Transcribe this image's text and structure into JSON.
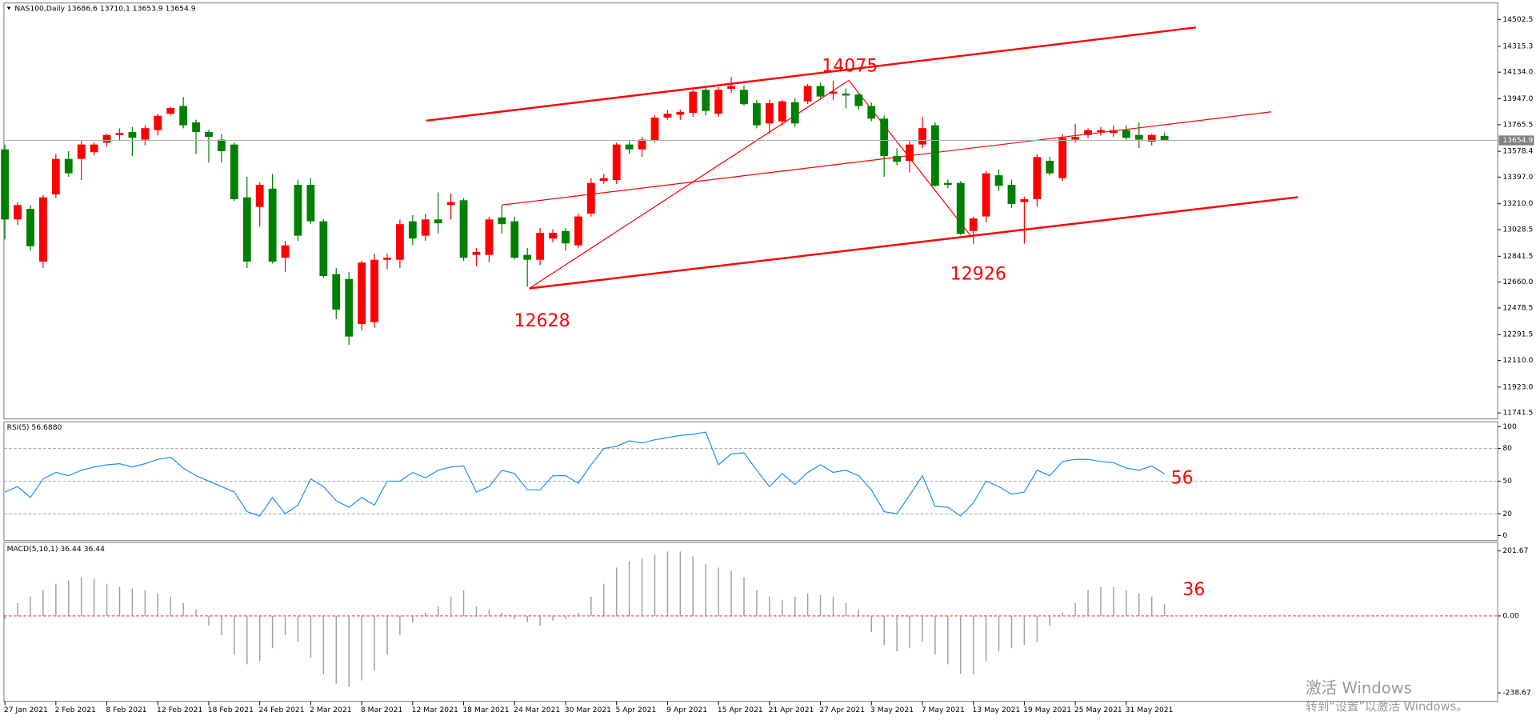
{
  "chart_data": [
    {
      "type": "candlestick",
      "title": "NAS100,Daily  13686.6 13710.1 13653.9 13654.9",
      "up_color": "#ff0000",
      "down_color": "#008000",
      "channel_color": "#ff0000",
      "annotations": [
        "14075",
        "12628",
        "12926"
      ],
      "categories": [
        "27 Jan 2021",
        null,
        null,
        null,
        "2 Feb 2021",
        null,
        null,
        null,
        "8 Feb 2021",
        null,
        null,
        null,
        "12 Feb 2021",
        null,
        null,
        null,
        "18 Feb 2021",
        null,
        null,
        null,
        "24 Feb 2021",
        null,
        null,
        null,
        "2 Mar 2021",
        null,
        null,
        null,
        "8 Mar 2021",
        null,
        null,
        null,
        "12 Mar 2021",
        null,
        null,
        null,
        "18 Mar 2021",
        null,
        null,
        null,
        "24 Mar 2021",
        null,
        null,
        null,
        "30 Mar 2021",
        null,
        null,
        null,
        "5 Apr 2021",
        null,
        null,
        null,
        "9 Apr 2021",
        null,
        null,
        null,
        "15 Apr 2021",
        null,
        null,
        null,
        "21 Apr 2021",
        null,
        null,
        null,
        "27 Apr 2021",
        null,
        null,
        null,
        "3 May 2021",
        null,
        null,
        null,
        "7 May 2021",
        null,
        null,
        null,
        "13 May 2021",
        null,
        null,
        null,
        "19 May 2021",
        null,
        null,
        null,
        "25 May 2021",
        null,
        null,
        null,
        "31 May 2021",
        null,
        null,
        null
      ],
      "open": [
        13592,
        13100,
        13174,
        12804,
        13276,
        13525,
        13525,
        13572,
        13639,
        13693,
        13714,
        13660,
        13727,
        13842,
        13896,
        13781,
        13714,
        13660,
        13626,
        13255,
        13188,
        13316,
        12831,
        13343,
        13343,
        13087,
        12716,
        12682,
        12366,
        12379,
        12817,
        12817,
        13087,
        12986,
        13100,
        13201,
        13235,
        12851,
        12851,
        13114,
        13087,
        12851,
        12817,
        12966,
        13019,
        12918,
        13141,
        13370,
        13377,
        13626,
        13592,
        13653,
        13815,
        13835,
        13848,
        14010,
        13842,
        14017,
        14010,
        13916,
        13774,
        13788,
        13923,
        13929,
        14037,
        13983,
        13983,
        13977,
        13896,
        13808,
        13545,
        13511,
        13626,
        13761,
        13356,
        13356,
        13019,
        13121,
        13410,
        13343,
        13222,
        13242,
        13511,
        13390,
        13660,
        13693,
        13714,
        13707,
        13727,
        13693,
        13646,
        13686.6
      ],
      "high": [
        13626,
        13220,
        13200,
        13270,
        13560,
        13580,
        13650,
        13640,
        13700,
        13740,
        13750,
        13760,
        13840,
        13890,
        13960,
        13800,
        13730,
        13700,
        13640,
        13400,
        13360,
        13420,
        12950,
        13380,
        13390,
        13100,
        12760,
        12730,
        12810,
        12860,
        12860,
        13100,
        13130,
        13140,
        13290,
        13280,
        13250,
        12900,
        13120,
        13200,
        13120,
        12900,
        13040,
        13030,
        13040,
        13140,
        13390,
        13420,
        13640,
        13650,
        13680,
        13830,
        13870,
        13870,
        14010,
        14030,
        14030,
        14100,
        14040,
        13940,
        13940,
        13940,
        13950,
        14050,
        14060,
        14075,
        14020,
        13990,
        13920,
        13830,
        13600,
        13650,
        13820,
        13780,
        13380,
        13370,
        13120,
        13440,
        13450,
        13380,
        13260,
        13560,
        13540,
        13700,
        13770,
        13740,
        13750,
        13760,
        13760,
        13780,
        13700,
        13710.1
      ],
      "low": [
        12960,
        13060,
        12880,
        12760,
        13250,
        13400,
        13377,
        13550,
        13610,
        13650,
        13545,
        13620,
        13690,
        13830,
        13740,
        13560,
        13500,
        13500,
        13230,
        12760,
        13050,
        12790,
        12730,
        12950,
        13070,
        12690,
        12400,
        12220,
        12320,
        12340,
        12750,
        12760,
        12920,
        12950,
        13000,
        13100,
        12810,
        12770,
        12800,
        13000,
        12820,
        12628,
        12780,
        12940,
        12880,
        12900,
        13120,
        13350,
        13350,
        13560,
        13540,
        13640,
        13800,
        13800,
        13820,
        13830,
        13820,
        13990,
        13900,
        13740,
        13700,
        13760,
        13750,
        13910,
        13950,
        13940,
        13880,
        13870,
        13790,
        13400,
        13480,
        13430,
        13600,
        13330,
        13320,
        12990,
        12926,
        13080,
        13300,
        13180,
        12930,
        13190,
        13410,
        13370,
        13640,
        13670,
        13690,
        13680,
        13660,
        13600,
        13620,
        13653.9
      ],
      "close": [
        13100,
        13201,
        12912,
        13255,
        13525,
        13424,
        13626,
        13626,
        13693,
        13707,
        13673,
        13741,
        13828,
        13882,
        13761,
        13714,
        13680,
        13579,
        13242,
        12804,
        13343,
        12804,
        12918,
        12986,
        13087,
        12703,
        12467,
        12278,
        12797,
        12817,
        12831,
        13067,
        12966,
        13100,
        13073,
        13222,
        12831,
        12871,
        13100,
        13067,
        12831,
        12817,
        13006,
        13006,
        12932,
        13121,
        13356,
        13390,
        13626,
        13592,
        13660,
        13815,
        13842,
        13855,
        13997,
        13862,
        14010,
        14037,
        13909,
        13761,
        13916,
        13929,
        13774,
        14037,
        13963,
        13997,
        13970,
        13896,
        13808,
        13545,
        13505,
        13626,
        13741,
        13336,
        13343,
        12999,
        13107,
        13424,
        13336,
        13208,
        13242,
        13538,
        13424,
        13673,
        13680,
        13727,
        13727,
        13727,
        13673,
        13660,
        13693,
        13654.9
      ],
      "ylim": [
        11700,
        14620
      ],
      "yticks": [
        14502.5,
        14315.3,
        {
          "value": 14134,
          "label": "14134.0"
        },
        {
          "value": 13947,
          "label": "13947.0"
        },
        13765.5,
        13578.4,
        {
          "value": 13397,
          "label": "13397.0"
        },
        {
          "value": 13210,
          "label": "13210.0"
        },
        13028.5,
        12841.5,
        {
          "value": 12660,
          "label": "12660.0"
        },
        12478.5,
        12291.5,
        {
          "value": 12110,
          "label": "12110.0"
        },
        {
          "value": 11923,
          "label": "11923.0"
        },
        11741.5
      ]
    },
    {
      "type": "line",
      "title": "RSI(5) 56.6880",
      "color": "#1e90ff",
      "annotation": "56",
      "level_color": "#a0a0a0",
      "values": [
        40,
        45,
        35,
        52,
        58,
        55,
        60,
        63,
        65,
        66,
        63,
        66,
        70,
        72,
        62,
        55,
        50,
        45,
        40,
        22,
        18,
        35,
        20,
        28,
        52,
        45,
        32,
        26,
        35,
        28,
        50,
        50,
        58,
        53,
        60,
        63,
        64,
        40,
        45,
        60,
        57,
        42,
        42,
        55,
        55,
        48,
        65,
        80,
        82,
        87,
        85,
        88,
        90,
        92,
        93,
        95,
        65,
        75,
        76,
        60,
        45,
        57,
        47,
        58,
        65,
        58,
        60,
        55,
        42,
        22,
        20,
        37,
        55,
        27,
        26,
        18,
        30,
        50,
        45,
        38,
        40,
        60,
        55,
        68,
        70,
        70,
        68,
        67,
        62,
        60,
        64,
        56.688
      ],
      "ylim": [
        -4.5,
        104.5
      ],
      "yticks": [
        100,
        80,
        50,
        20,
        0
      ],
      "levels": [
        80,
        50,
        20
      ]
    },
    {
      "type": "bar",
      "title": "MACD(5,10,1) 36.44 36.44",
      "color": "#a0a0a0",
      "annotation": "36",
      "level_color": "#ff0000",
      "values": [
        -10,
        40,
        60,
        80,
        100,
        110,
        120,
        115,
        100,
        90,
        85,
        80,
        70,
        60,
        40,
        20,
        -30,
        -60,
        -120,
        -150,
        -140,
        -100,
        -60,
        -80,
        -130,
        -180,
        -210,
        -220,
        -200,
        -170,
        -120,
        -60,
        -20,
        10,
        30,
        60,
        80,
        30,
        20,
        10,
        -10,
        -20,
        -30,
        -15,
        -10,
        10,
        60,
        100,
        150,
        170,
        180,
        190,
        200,
        200,
        185,
        160,
        150,
        140,
        120,
        80,
        60,
        50,
        60,
        70,
        65,
        60,
        40,
        20,
        -50,
        -90,
        -110,
        -100,
        -80,
        -120,
        -150,
        -180,
        -180,
        -140,
        -110,
        -100,
        -90,
        -80,
        -30,
        10,
        40,
        80,
        90,
        90,
        80,
        70,
        60,
        36.44
      ],
      "ylim": [
        -265,
        228
      ],
      "yticks": [
        201.67,
        {
          "value": 0,
          "label": "0.00"
        },
        -238.67
      ],
      "levels": [
        0
      ]
    }
  ],
  "watermark": {
    "title": "激活 Windows",
    "subtitle": "转到“设置”以激活 Windows。"
  }
}
